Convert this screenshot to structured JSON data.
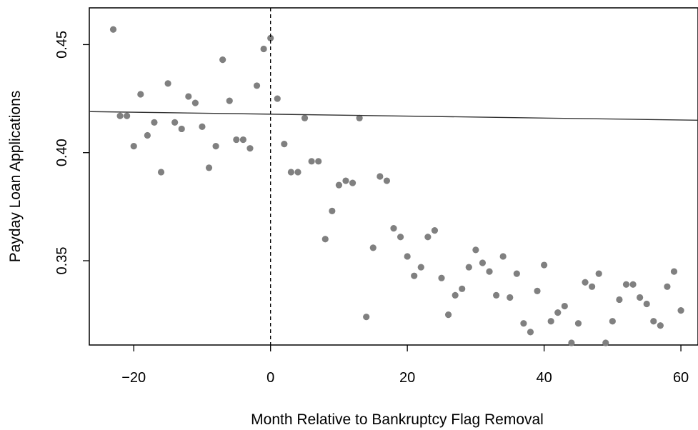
{
  "chart_data": {
    "type": "scatter",
    "xlabel": "Month Relative to Bankruptcy Flag Removal",
    "ylabel": "Payday Loan Applications",
    "xlim": [
      -26.5,
      62.5
    ],
    "ylim": [
      0.311,
      0.467
    ],
    "x_ticks": [
      -20,
      0,
      20,
      40,
      60
    ],
    "x_tick_labels": [
      "−20",
      "0",
      "20",
      "40",
      "60"
    ],
    "y_ticks": [
      0.35,
      0.4,
      0.45
    ],
    "y_tick_labels": [
      "0.35",
      "0.40",
      "0.45"
    ],
    "grid": false,
    "legend": "none",
    "vline_x": 0,
    "fit_line": {
      "x": [
        -26.5,
        62.5
      ],
      "y": [
        0.419,
        0.415
      ]
    },
    "colors": {
      "points": "#808080",
      "line": "#333333",
      "frame": "#000000"
    },
    "series": [
      {
        "x": [
          -23,
          -22,
          -21,
          -20,
          -19,
          -18,
          -17,
          -16,
          -15,
          -14,
          -13,
          -12,
          -11,
          -10,
          -9,
          -8,
          -7,
          -6,
          -5,
          -4,
          -3,
          -2,
          -1,
          0,
          1,
          2,
          3,
          4,
          5,
          6,
          7,
          8,
          9,
          10,
          11,
          12,
          13,
          14,
          15,
          16,
          17,
          18,
          19,
          20,
          21,
          22,
          23,
          24,
          25,
          26,
          27,
          28,
          29,
          30,
          31,
          32,
          33,
          34,
          35,
          36,
          37,
          38,
          39,
          40,
          41,
          42,
          43,
          44,
          45,
          46,
          47,
          48,
          49,
          50,
          51,
          52,
          53,
          54,
          55,
          56,
          57,
          58,
          59,
          60
        ],
        "y": [
          0.457,
          0.417,
          0.417,
          0.403,
          0.427,
          0.408,
          0.414,
          0.391,
          0.432,
          0.414,
          0.411,
          0.426,
          0.423,
          0.412,
          0.393,
          0.403,
          0.443,
          0.424,
          0.406,
          0.406,
          0.402,
          0.431,
          0.448,
          0.453,
          0.425,
          0.404,
          0.391,
          0.391,
          0.416,
          0.396,
          0.396,
          0.36,
          0.373,
          0.385,
          0.387,
          0.386,
          0.416,
          0.324,
          0.356,
          0.389,
          0.387,
          0.365,
          0.361,
          0.352,
          0.343,
          0.347,
          0.361,
          0.364,
          0.342,
          0.325,
          0.334,
          0.337,
          0.347,
          0.355,
          0.349,
          0.345,
          0.334,
          0.352,
          0.333,
          0.344,
          0.321,
          0.317,
          0.336,
          0.348,
          0.322,
          0.326,
          0.329,
          0.312,
          0.321,
          0.34,
          0.338,
          0.344,
          0.312,
          0.322,
          0.332,
          0.339,
          0.339,
          0.333,
          0.33,
          0.322,
          0.32,
          0.338,
          0.345,
          0.327
        ]
      }
    ]
  }
}
